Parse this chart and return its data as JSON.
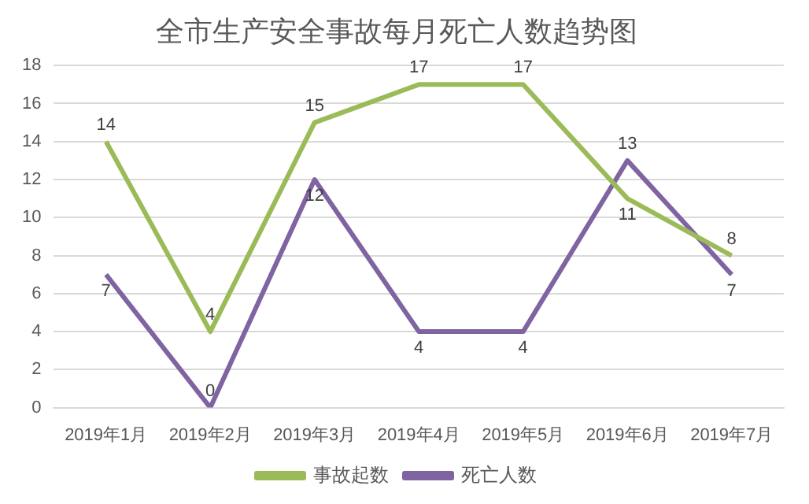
{
  "chart_data": {
    "type": "line",
    "title": "全市生产安全事故每月死亡人数趋势图",
    "categories": [
      "2019年1月",
      "2019年2月",
      "2019年3月",
      "2019年4月",
      "2019年5月",
      "2019年6月",
      "2019年7月"
    ],
    "series": [
      {
        "name": "事故起数",
        "color": "#9bbb59",
        "values": [
          14,
          4,
          15,
          17,
          17,
          11,
          8
        ]
      },
      {
        "name": "死亡人数",
        "color": "#8064a2",
        "values": [
          7,
          0,
          12,
          4,
          4,
          13,
          7
        ]
      }
    ],
    "ylim": [
      0,
      18
    ],
    "yticks": [
      0,
      2,
      4,
      6,
      8,
      10,
      12,
      14,
      16,
      18
    ],
    "grid": "y",
    "legend": "bottom",
    "data_labels": true,
    "marker": "none",
    "line_style": "solid"
  }
}
